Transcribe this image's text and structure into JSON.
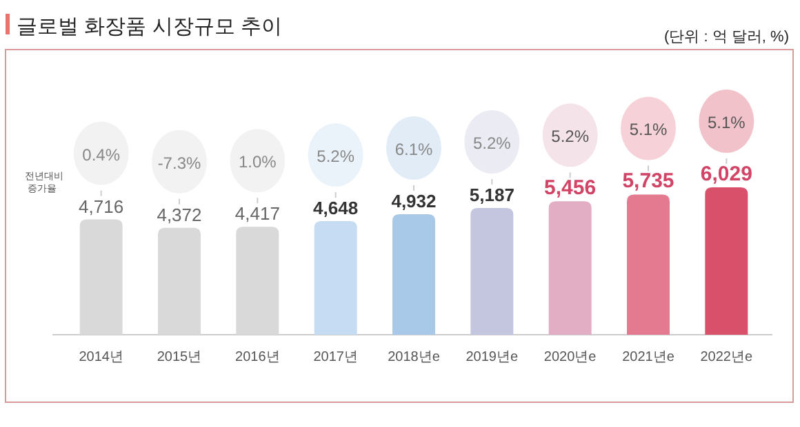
{
  "chart_data": {
    "type": "bar",
    "title": "글로벌 화장품 시장규모 추이",
    "subtitle": "(단위 : 억 달러, %)",
    "categories": [
      "2014년",
      "2015년",
      "2016년",
      "2017년",
      "2018년e",
      "2019년e",
      "2020년e",
      "2021년e",
      "2022년e"
    ],
    "values": [
      4716,
      4372,
      4417,
      4648,
      4932,
      5187,
      5456,
      5735,
      6029
    ],
    "colors": [
      "#d9d9d9",
      "#d9d9d9",
      "#d9d9d9",
      "#c5dcf2",
      "#a9c9e8",
      "#c3c6de",
      "#e2aec4",
      "#e47a90",
      "#d9506b"
    ],
    "tick_labels": "x",
    "value_labels": [
      "4,716",
      "4,372",
      "4,417",
      "4,648",
      "4,932",
      "5,187",
      "5,456",
      "5,735",
      "6,029"
    ],
    "annotations": [
      "전년대비 증가율",
      "0.4%",
      "-7.3%",
      "1.0%",
      "5.2%",
      "6.1%",
      "5.2%",
      "5.2%",
      "5.1%",
      "5.1%"
    ]
  }
}
